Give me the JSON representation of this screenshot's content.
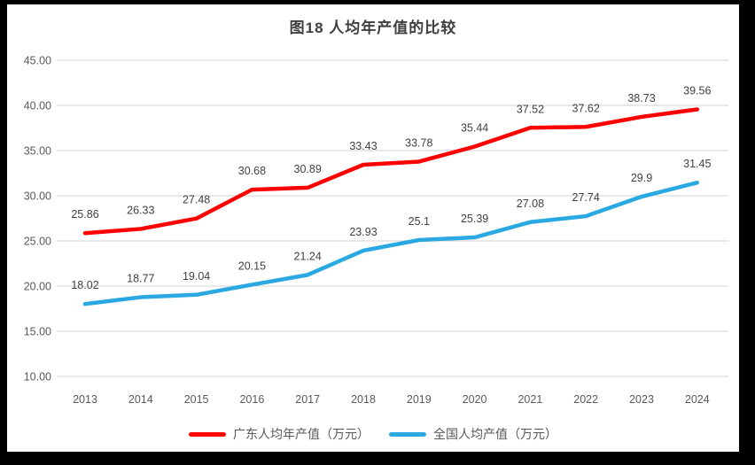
{
  "frame": {
    "background_color": "#000000",
    "chart_background_color": "#ffffff"
  },
  "chart_data": {
    "type": "line",
    "title": "图18 人均年产值的比较",
    "categories": [
      "2013",
      "2014",
      "2015",
      "2016",
      "2017",
      "2018",
      "2019",
      "2020",
      "2021",
      "2022",
      "2023",
      "2024"
    ],
    "series": [
      {
        "name": "广东人均年产值（万元）",
        "color": "#FE0000",
        "values": [
          25.86,
          26.33,
          27.48,
          30.68,
          30.89,
          33.43,
          33.78,
          35.44,
          37.52,
          37.62,
          38.73,
          39.56
        ],
        "labels": [
          "25.86",
          "26.33",
          "27.48",
          "30.68",
          "30.89",
          "33.43",
          "33.78",
          "35.44",
          "37.52",
          "37.62",
          "38.73",
          "39.56"
        ]
      },
      {
        "name": "全国人均产值（万元）",
        "color": "#29A8E1",
        "values": [
          18.02,
          18.77,
          19.04,
          20.15,
          21.24,
          23.93,
          25.1,
          25.39,
          27.08,
          27.74,
          29.9,
          31.45
        ],
        "labels": [
          "18.02",
          "18.77",
          "19.04",
          "20.15",
          "21.24",
          "23.93",
          "25.1",
          "25.39",
          "27.08",
          "27.74",
          "29.9",
          "31.45"
        ]
      }
    ],
    "ylim": [
      10,
      45
    ],
    "ytick_step": 5,
    "ytick_labels": [
      "10.00",
      "15.00",
      "20.00",
      "25.00",
      "30.00",
      "35.00",
      "40.00",
      "45.00"
    ],
    "grid": "horizontal",
    "grid_color": "#DCDCDC",
    "tick_color": "#595959",
    "data_label_color": "#404040",
    "legend_position": "bottom",
    "xlabel": "",
    "ylabel": ""
  }
}
